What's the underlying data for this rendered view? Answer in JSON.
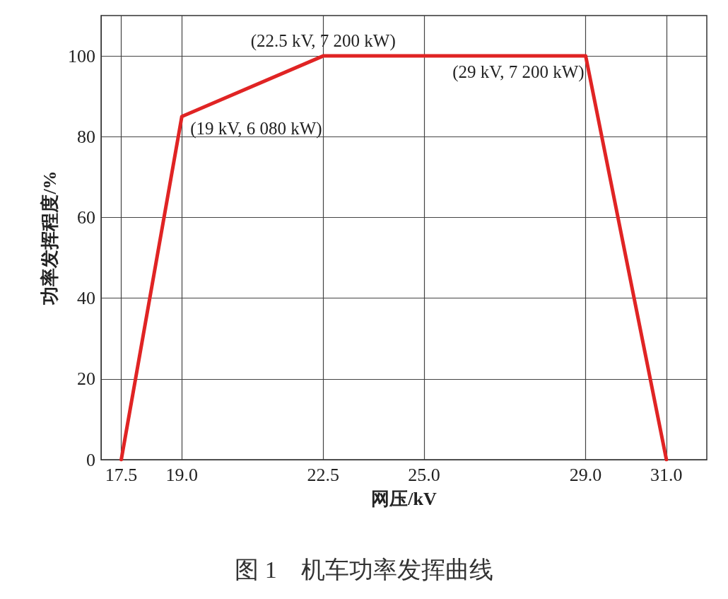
{
  "chart_data": {
    "type": "line",
    "title": "图 1　机车功率发挥曲线",
    "xlabel": "网压/kV",
    "ylabel": "功率发挥程度/%",
    "x": [
      17.5,
      19,
      22.5,
      29,
      31
    ],
    "series": [
      {
        "color": "#e02424",
        "values": [
          0,
          85,
          100,
          100,
          0
        ]
      }
    ],
    "xlim": [
      17,
      32
    ],
    "xticks": [
      {
        "value": 17.5,
        "label": "17.5"
      },
      {
        "value": 19,
        "label": "19.0"
      },
      {
        "value": 22.5,
        "label": "22.5"
      },
      {
        "value": 25,
        "label": "25.0"
      },
      {
        "value": 29,
        "label": "29.0"
      },
      {
        "value": 31,
        "label": "31.0"
      }
    ],
    "ylim": [
      0,
      110
    ],
    "yticks": [
      0,
      20,
      40,
      60,
      80,
      100
    ],
    "grid": true,
    "marker": "none",
    "line_style": "solid",
    "annotations": [
      {
        "text": "(22.5 kV, 7 200 kW)",
        "x": 22.5,
        "y": 100
      },
      {
        "text": "(29 kV, 7 200 kW)",
        "x": 29,
        "y": 100
      },
      {
        "text": "(19 kV, 6 080 kW)",
        "x": 19,
        "y": 85
      }
    ]
  }
}
